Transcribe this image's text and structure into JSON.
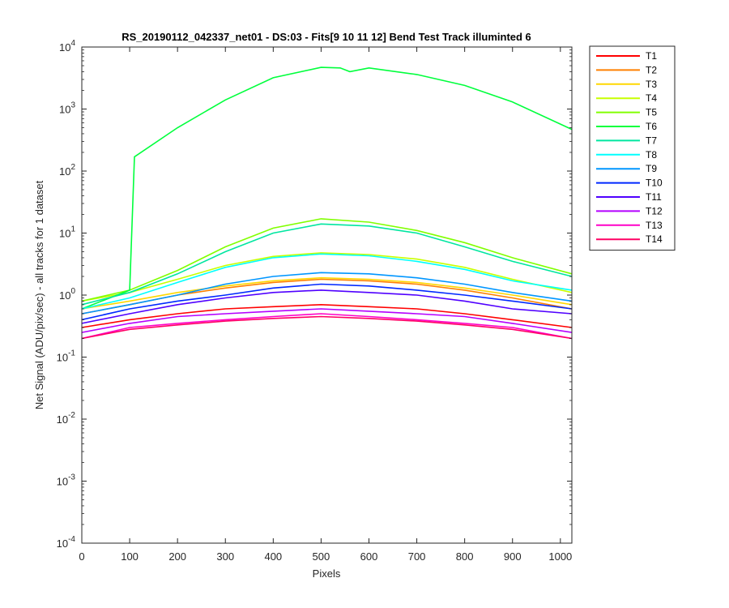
{
  "chart_data": {
    "type": "line",
    "title": "RS_20190112_042337_net01 - DS:03 - Fits[9  10  11  12]   Bend Test       Track illuminted 6",
    "xlabel": "Pixels",
    "ylabel": "Net Signal (ADU/pix/sec) - all tracks for 1 dataset",
    "xlim": [
      0,
      1024
    ],
    "ylim": [
      0.0001,
      10000
    ],
    "yscale": "log",
    "x_ticks": [
      0,
      100,
      200,
      300,
      400,
      500,
      600,
      700,
      800,
      900,
      1000
    ],
    "y_ticks": [
      {
        "value": 0.0001,
        "base": "10",
        "exp": "-4"
      },
      {
        "value": 0.001,
        "base": "10",
        "exp": "-3"
      },
      {
        "value": 0.01,
        "base": "10",
        "exp": "-2"
      },
      {
        "value": 0.1,
        "base": "10",
        "exp": "-1"
      },
      {
        "value": 1,
        "base": "10",
        "exp": "0"
      },
      {
        "value": 10,
        "base": "10",
        "exp": "1"
      },
      {
        "value": 100,
        "base": "10",
        "exp": "2"
      },
      {
        "value": 1000,
        "base": "10",
        "exp": "3"
      },
      {
        "value": 10000,
        "base": "10",
        "exp": "4"
      }
    ],
    "grid": false,
    "legend_position": "outside-top-right",
    "series": [
      {
        "name": "T1",
        "color": "#ff0000",
        "x": [
          0,
          100,
          200,
          300,
          400,
          500,
          600,
          700,
          800,
          900,
          1024
        ],
        "y": [
          0.3,
          0.4,
          0.5,
          0.6,
          0.65,
          0.7,
          0.65,
          0.6,
          0.5,
          0.4,
          0.3
        ]
      },
      {
        "name": "T2",
        "color": "#ff8000",
        "x": [
          0,
          100,
          200,
          300,
          400,
          500,
          600,
          700,
          800,
          900,
          1024
        ],
        "y": [
          0.5,
          0.7,
          1.0,
          1.3,
          1.6,
          1.8,
          1.7,
          1.5,
          1.2,
          0.9,
          0.6
        ]
      },
      {
        "name": "T3",
        "color": "#ffd700",
        "x": [
          0,
          100,
          200,
          300,
          400,
          500,
          600,
          700,
          800,
          900,
          1024
        ],
        "y": [
          0.6,
          0.8,
          1.1,
          1.4,
          1.7,
          1.9,
          1.8,
          1.6,
          1.3,
          1.0,
          0.7
        ]
      },
      {
        "name": "T4",
        "color": "#c8ff00",
        "x": [
          0,
          100,
          200,
          300,
          400,
          500,
          600,
          700,
          800,
          900,
          1024
        ],
        "y": [
          0.8,
          1.1,
          1.8,
          3.0,
          4.2,
          4.8,
          4.5,
          3.8,
          2.8,
          1.8,
          1.1
        ]
      },
      {
        "name": "T5",
        "color": "#80ff00",
        "x": [
          0,
          100,
          200,
          300,
          400,
          500,
          600,
          700,
          800,
          900,
          1024
        ],
        "y": [
          0.8,
          1.2,
          2.5,
          6.0,
          12,
          17,
          15,
          11,
          7,
          4,
          2.2
        ]
      },
      {
        "name": "T6",
        "color": "#00ff3c",
        "x": [
          0,
          100,
          110,
          200,
          300,
          400,
          500,
          540,
          560,
          600,
          700,
          800,
          900,
          1024
        ],
        "y": [
          0.6,
          1.2,
          170,
          500,
          1400,
          3200,
          4700,
          4600,
          4000,
          4600,
          3600,
          2400,
          1300,
          470
        ]
      },
      {
        "name": "T7",
        "color": "#00e6a0",
        "x": [
          0,
          100,
          200,
          300,
          400,
          500,
          600,
          700,
          800,
          900,
          1024
        ],
        "y": [
          0.7,
          1.1,
          2.2,
          5.0,
          10,
          14,
          13,
          10,
          6,
          3.5,
          2.0
        ]
      },
      {
        "name": "T8",
        "color": "#00ffff",
        "x": [
          0,
          100,
          200,
          300,
          400,
          500,
          600,
          700,
          800,
          900,
          1024
        ],
        "y": [
          0.6,
          0.9,
          1.6,
          2.8,
          4.0,
          4.6,
          4.3,
          3.5,
          2.6,
          1.7,
          1.2
        ]
      },
      {
        "name": "T9",
        "color": "#0096ff",
        "x": [
          0,
          100,
          200,
          300,
          400,
          500,
          600,
          700,
          800,
          900,
          1024
        ],
        "y": [
          0.5,
          0.7,
          1.0,
          1.5,
          2.0,
          2.3,
          2.2,
          1.9,
          1.5,
          1.1,
          0.8
        ]
      },
      {
        "name": "T10",
        "color": "#0028ff",
        "x": [
          0,
          100,
          200,
          300,
          400,
          500,
          600,
          700,
          800,
          900,
          1024
        ],
        "y": [
          0.4,
          0.6,
          0.8,
          1.0,
          1.3,
          1.5,
          1.4,
          1.2,
          1.0,
          0.8,
          0.6
        ]
      },
      {
        "name": "T11",
        "color": "#5000ff",
        "x": [
          0,
          100,
          200,
          300,
          400,
          500,
          600,
          700,
          800,
          900,
          1024
        ],
        "y": [
          0.35,
          0.5,
          0.7,
          0.9,
          1.1,
          1.2,
          1.1,
          1.0,
          0.8,
          0.6,
          0.5
        ]
      },
      {
        "name": "T12",
        "color": "#b400ff",
        "x": [
          0,
          100,
          200,
          300,
          400,
          500,
          600,
          700,
          800,
          900,
          1024
        ],
        "y": [
          0.25,
          0.35,
          0.45,
          0.5,
          0.55,
          0.6,
          0.55,
          0.5,
          0.45,
          0.35,
          0.25
        ]
      },
      {
        "name": "T13",
        "color": "#ff00c8",
        "x": [
          0,
          100,
          200,
          300,
          400,
          500,
          600,
          700,
          800,
          900,
          1024
        ],
        "y": [
          0.2,
          0.3,
          0.35,
          0.4,
          0.45,
          0.5,
          0.45,
          0.4,
          0.35,
          0.3,
          0.2
        ]
      },
      {
        "name": "T14",
        "color": "#ff0064",
        "x": [
          0,
          100,
          200,
          300,
          400,
          500,
          600,
          700,
          800,
          900,
          1024
        ],
        "y": [
          0.2,
          0.28,
          0.33,
          0.38,
          0.42,
          0.45,
          0.42,
          0.38,
          0.33,
          0.28,
          0.2
        ]
      }
    ]
  }
}
